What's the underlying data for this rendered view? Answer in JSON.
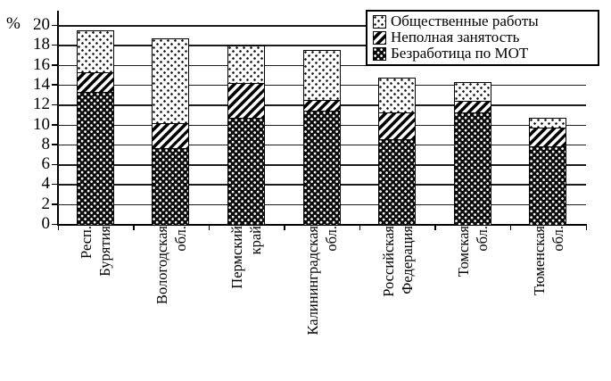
{
  "figure": {
    "background": "#ffffff",
    "axis_color": "#000000",
    "grid_color": "#1c1c1c",
    "y_axis": {
      "unit_label": "%",
      "min": 0,
      "max": 20,
      "step": 2,
      "tick_labels": [
        "0",
        "2",
        "4",
        "6",
        "8",
        "10",
        "12",
        "14",
        "16",
        "18",
        "20"
      ]
    },
    "legend": {
      "position": "top-right",
      "items": [
        {
          "key": "public-works",
          "label": "Общественные работы",
          "pattern": "sparse-black-dots-on-white",
          "css": "pat-public"
        },
        {
          "key": "part-time",
          "label": "Неполная занятость",
          "pattern": "diagonal-hatch",
          "css": "pat-part"
        },
        {
          "key": "ilo-unemployment",
          "label": "Безработица по МОТ",
          "pattern": "white-dots-on-black",
          "css": "pat-ilo"
        }
      ]
    }
  },
  "chart_data": {
    "type": "bar",
    "stacked": true,
    "title": "",
    "xlabel": "",
    "ylabel": "%",
    "ylim": [
      0,
      20
    ],
    "ytick_step": 2,
    "grid": true,
    "legend_position": "top-right",
    "categories": [
      "Респ. Бурятия",
      "Вологодская обл.",
      "Пермский край",
      "Калининградская обл.",
      "Российская Федерация",
      "Томская обл.",
      "Тюменская обл."
    ],
    "category_label_lines": [
      [
        "Респ.",
        "Бурятия"
      ],
      [
        "Вологодская",
        "обл."
      ],
      [
        "Пермский",
        "край"
      ],
      [
        "Калининградская",
        "обл."
      ],
      [
        "Российская",
        "Федерация"
      ],
      [
        "Томская",
        "обл."
      ],
      [
        "Тюменская",
        "обл."
      ]
    ],
    "series": [
      {
        "name": "Безработица по МОТ",
        "key": "ilo-unemployment",
        "pattern": "white-dots-on-black",
        "css": "pat-ilo",
        "values": [
          13.4,
          7.7,
          10.8,
          11.5,
          8.6,
          11.3,
          7.9
        ]
      },
      {
        "name": "Неполная занятость",
        "key": "part-time",
        "pattern": "diagonal-hatch",
        "css": "pat-part",
        "values": [
          1.9,
          2.5,
          3.5,
          1.1,
          2.7,
          1.2,
          1.9
        ]
      },
      {
        "name": "Общественные работы",
        "key": "public-works",
        "pattern": "sparse-black-dots-on-white",
        "css": "pat-public",
        "values": [
          4.2,
          8.5,
          3.6,
          4.9,
          3.4,
          1.8,
          0.9
        ]
      }
    ],
    "stack_totals": [
      19.5,
      18.7,
      17.9,
      17.5,
      14.7,
      14.3,
      10.7
    ]
  }
}
